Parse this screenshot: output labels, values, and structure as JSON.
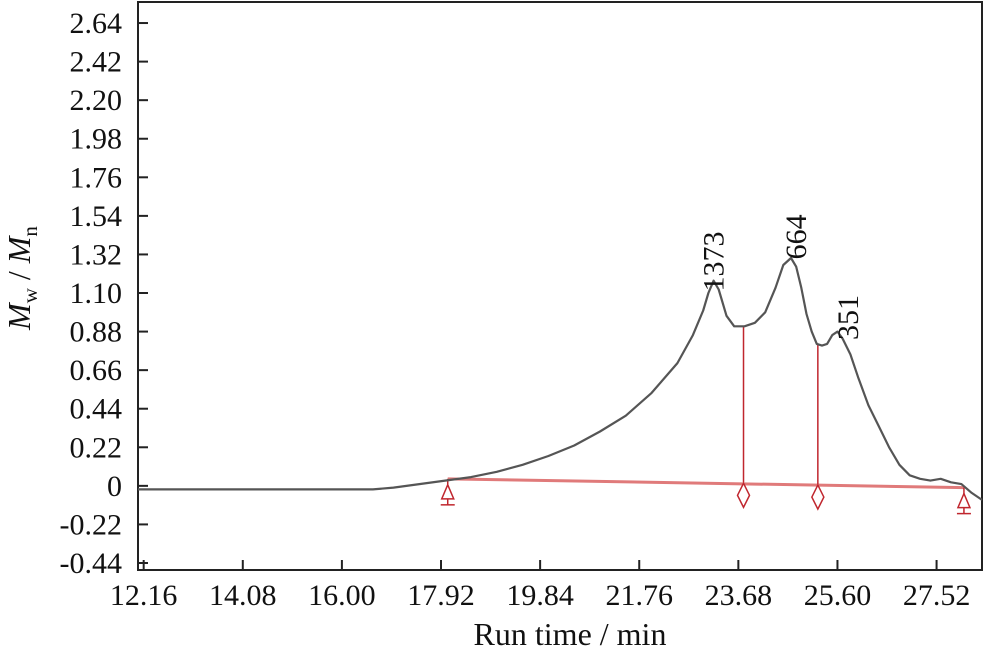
{
  "chart_data": {
    "type": "line",
    "xlabel": "Run time / min",
    "ylabel": {
      "main_1": "M",
      "sub_1": "w",
      "separator": " / ",
      "main_2": "M",
      "sub_2": "n"
    },
    "xlim": [
      12.05,
      28.4
    ],
    "ylim": [
      -0.48,
      2.76
    ],
    "x_ticks": [
      "12.16",
      "14.08",
      "16.00",
      "17.92",
      "19.84",
      "21.76",
      "23.68",
      "25.60",
      "27.52"
    ],
    "y_ticks": [
      "2.64",
      "2.42",
      "2.20",
      "1.98",
      "1.76",
      "1.54",
      "1.32",
      "1.10",
      "0.88",
      "0.66",
      "0.44",
      "0.22",
      "0",
      "-0.22",
      "-0.44"
    ],
    "grid": false,
    "colors": {
      "signal": "#555555",
      "baseline": "#e07a7a",
      "markers": "#c0262e"
    },
    "series": [
      {
        "x": [
          12.05,
          13.0,
          14.0,
          15.0,
          16.0,
          16.6,
          17.0,
          17.5,
          18.0,
          18.5,
          19.0,
          19.5,
          20.0,
          20.5,
          21.0,
          21.5,
          22.0,
          22.5,
          22.8,
          23.0,
          23.1,
          23.2,
          23.3,
          23.45,
          23.6,
          23.8,
          24.0,
          24.2,
          24.4,
          24.55,
          24.7,
          24.8,
          24.9,
          25.0,
          25.1,
          25.2,
          25.3,
          25.4,
          25.5,
          25.6,
          25.7,
          25.85,
          26.0,
          26.2,
          26.4,
          26.6,
          26.8,
          27.0,
          27.2,
          27.4,
          27.6,
          27.8,
          28.0,
          28.2,
          28.4
        ],
        "y": [
          -0.02,
          -0.02,
          -0.02,
          -0.02,
          -0.02,
          -0.02,
          -0.01,
          0.01,
          0.03,
          0.05,
          0.08,
          0.12,
          0.17,
          0.23,
          0.31,
          0.4,
          0.53,
          0.7,
          0.86,
          1.0,
          1.1,
          1.17,
          1.12,
          0.97,
          0.91,
          0.91,
          0.93,
          0.99,
          1.13,
          1.26,
          1.3,
          1.25,
          1.13,
          0.98,
          0.88,
          0.81,
          0.8,
          0.81,
          0.86,
          0.88,
          0.84,
          0.75,
          0.62,
          0.46,
          0.34,
          0.22,
          0.12,
          0.06,
          0.04,
          0.03,
          0.04,
          0.02,
          0.01,
          -0.04,
          -0.08
        ]
      }
    ],
    "baseline": {
      "x": [
        18.05,
        28.05
      ],
      "y": [
        0.04,
        -0.01
      ]
    },
    "markers": [
      {
        "type": "triangle",
        "x": 18.05,
        "y": 0.04
      },
      {
        "type": "drop-line",
        "x": 23.78,
        "y_top": 0.91,
        "y_base": 0.02
      },
      {
        "type": "drop-line",
        "x": 25.22,
        "y_top": 0.81,
        "y_base": 0.01
      },
      {
        "type": "triangle",
        "x": 28.05,
        "y": -0.01
      }
    ],
    "annotations": [
      {
        "text": "1373",
        "x": 23.2,
        "y": 1.28
      },
      {
        "text": "664",
        "x": 24.8,
        "y": 1.42
      },
      {
        "text": "351",
        "x": 25.8,
        "y": 0.96
      }
    ]
  }
}
